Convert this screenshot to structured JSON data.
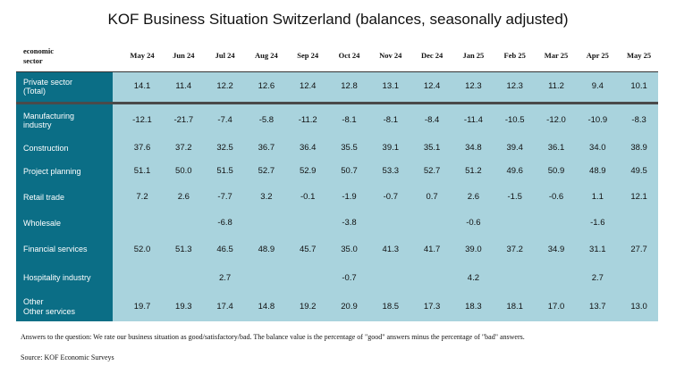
{
  "title": "KOF Business Situation Switzerland (balances, seasonally adjusted)",
  "table": {
    "row_header": "economic\nsector",
    "months": [
      "May 24",
      "Jun 24",
      "Jul 24",
      "Aug 24",
      "Sep 24",
      "Oct 24",
      "Nov 24",
      "Dec 24",
      "Jan 25",
      "Feb 25",
      "Mar 25",
      "Apr 25",
      "May 25"
    ],
    "rows": [
      {
        "label": "Private sector\n(Total)",
        "values": [
          "14.1",
          "11.4",
          "12.2",
          "12.6",
          "12.4",
          "12.8",
          "13.1",
          "12.4",
          "12.3",
          "12.3",
          "11.2",
          "9.4",
          "10.1"
        ]
      },
      {
        "label": "Manufacturing\nindustry",
        "values": [
          "-12.1",
          "-21.7",
          "-7.4",
          "-5.8",
          "-11.2",
          "-8.1",
          "-8.1",
          "-8.4",
          "-11.4",
          "-10.5",
          "-12.0",
          "-10.9",
          "-8.3"
        ]
      },
      {
        "label": "Construction",
        "values": [
          "37.6",
          "37.2",
          "32.5",
          "36.7",
          "36.4",
          "35.5",
          "39.1",
          "35.1",
          "34.8",
          "39.4",
          "36.1",
          "34.0",
          "38.9"
        ]
      },
      {
        "label": "Project planning",
        "values": [
          "51.1",
          "50.0",
          "51.5",
          "52.7",
          "52.9",
          "50.7",
          "53.3",
          "52.7",
          "51.2",
          "49.6",
          "50.9",
          "48.9",
          "49.5"
        ]
      },
      {
        "label": "Retail trade",
        "values": [
          "7.2",
          "2.6",
          "-7.7",
          "3.2",
          "-0.1",
          "-1.9",
          "-0.7",
          "0.7",
          "2.6",
          "-1.5",
          "-0.6",
          "1.1",
          "12.1"
        ]
      },
      {
        "label": "Wholesale",
        "values": [
          "",
          "",
          "-6.8",
          "",
          "",
          "-3.8",
          "",
          "",
          "-0.6",
          "",
          "",
          "-1.6",
          ""
        ]
      },
      {
        "label": "Financial services",
        "values": [
          "52.0",
          "51.3",
          "46.5",
          "48.9",
          "45.7",
          "35.0",
          "41.3",
          "41.7",
          "39.0",
          "37.2",
          "34.9",
          "31.1",
          "27.7"
        ]
      },
      {
        "label": "Hospitality industry",
        "values": [
          "",
          "",
          "2.7",
          "",
          "",
          "-0.7",
          "",
          "",
          "4.2",
          "",
          "",
          "2.7",
          ""
        ]
      },
      {
        "label": "Other\nOther services",
        "values": [
          "19.7",
          "19.3",
          "17.4",
          "14.8",
          "19.2",
          "20.9",
          "18.5",
          "17.3",
          "18.3",
          "18.1",
          "17.0",
          "13.7",
          "13.0"
        ]
      }
    ]
  },
  "footnote": "Answers to the question: We rate our business situation as good/satisfactory/bad. The balance value is the percentage of \"good\" answers minus the percentage of \"bad\" answers.",
  "source": "Source: KOF Economic Surveys",
  "colors": {
    "sidebar": "#0b6e86",
    "cells": "#a9d3dd",
    "divider": "#4a4a4a"
  }
}
